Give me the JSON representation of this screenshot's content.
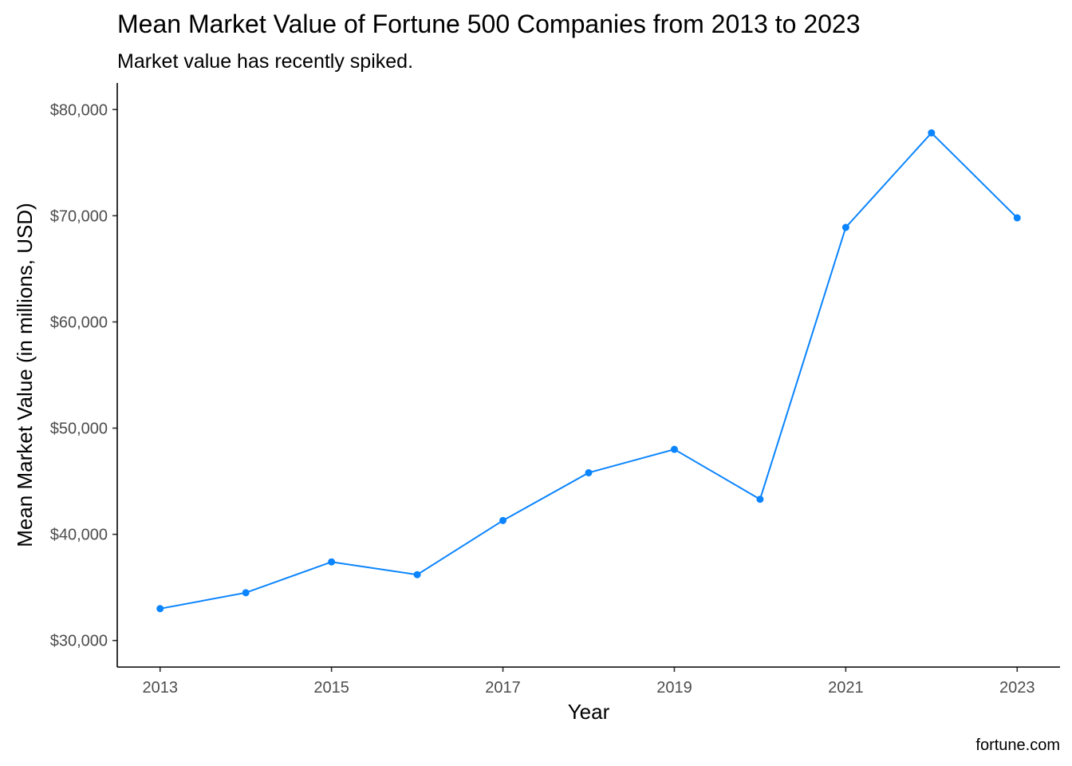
{
  "chart_data": {
    "type": "line",
    "title": "Mean Market Value of Fortune 500 Companies from 2013 to 2023",
    "subtitle": "Market value has recently spiked.",
    "xlabel": "Year",
    "ylabel": "Mean Market Value (in millions, USD)",
    "caption": "fortune.com",
    "x": [
      2013,
      2014,
      2015,
      2016,
      2017,
      2018,
      2019,
      2020,
      2021,
      2022,
      2023
    ],
    "series": [
      {
        "values": [
          33000,
          34500,
          37400,
          36200,
          41300,
          45800,
          48000,
          43300,
          68900,
          77800,
          69800
        ],
        "color": "#0a84ff"
      }
    ],
    "xlim": [
      2012.5,
      2023.5
    ],
    "ylim": [
      27500,
      82500
    ],
    "x_ticks": [
      2013,
      2015,
      2017,
      2019,
      2021,
      2023
    ],
    "x_tick_labels": [
      "2013",
      "2015",
      "2017",
      "2019",
      "2021",
      "2023"
    ],
    "y_ticks": [
      30000,
      40000,
      50000,
      60000,
      70000,
      80000
    ],
    "y_tick_labels": [
      "$30,000",
      "$40,000",
      "$50,000",
      "$60,000",
      "$70,000",
      "$80,000"
    ],
    "grid": false,
    "legend": "none"
  }
}
